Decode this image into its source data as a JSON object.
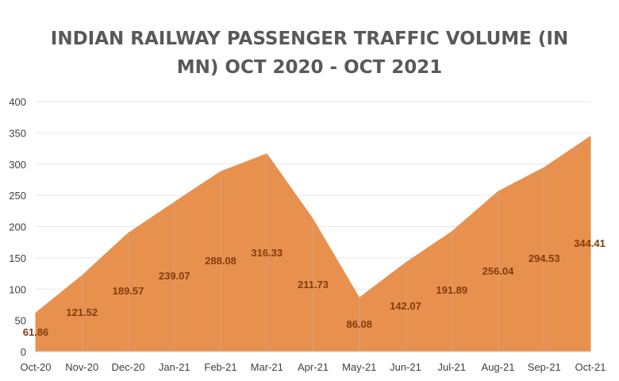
{
  "chart_data": {
    "type": "area",
    "title_lines": [
      "INDIAN RAILWAY PASSENGER TRAFFIC VOLUME (IN",
      "MN) OCT 2020 - OCT 2021"
    ],
    "categories": [
      "Oct-20",
      "Nov-20",
      "Dec-20",
      "Jan-21",
      "Feb-21",
      "Mar-21",
      "Apr-21",
      "May-21",
      "Jun-21",
      "Jul-21",
      "Aug-21",
      "Sep-21",
      "Oct-21"
    ],
    "values": [
      61.86,
      121.52,
      189.57,
      239.07,
      288.08,
      316.33,
      211.73,
      86.08,
      142.07,
      191.89,
      256.04,
      294.53,
      344.41
    ],
    "data_labels": [
      "61.86",
      "121.52",
      "189.57",
      "239.07",
      "288.08",
      "316.33",
      "211.73",
      "86.08",
      "142.07",
      "191.89",
      "256.04",
      "294.53",
      "344.41"
    ],
    "yticks": [
      0,
      50,
      100,
      150,
      200,
      250,
      300,
      350,
      400
    ],
    "ylim": [
      0,
      400
    ],
    "grid": true,
    "fill_color": "#e8914f",
    "label_color": "#843c0c"
  }
}
